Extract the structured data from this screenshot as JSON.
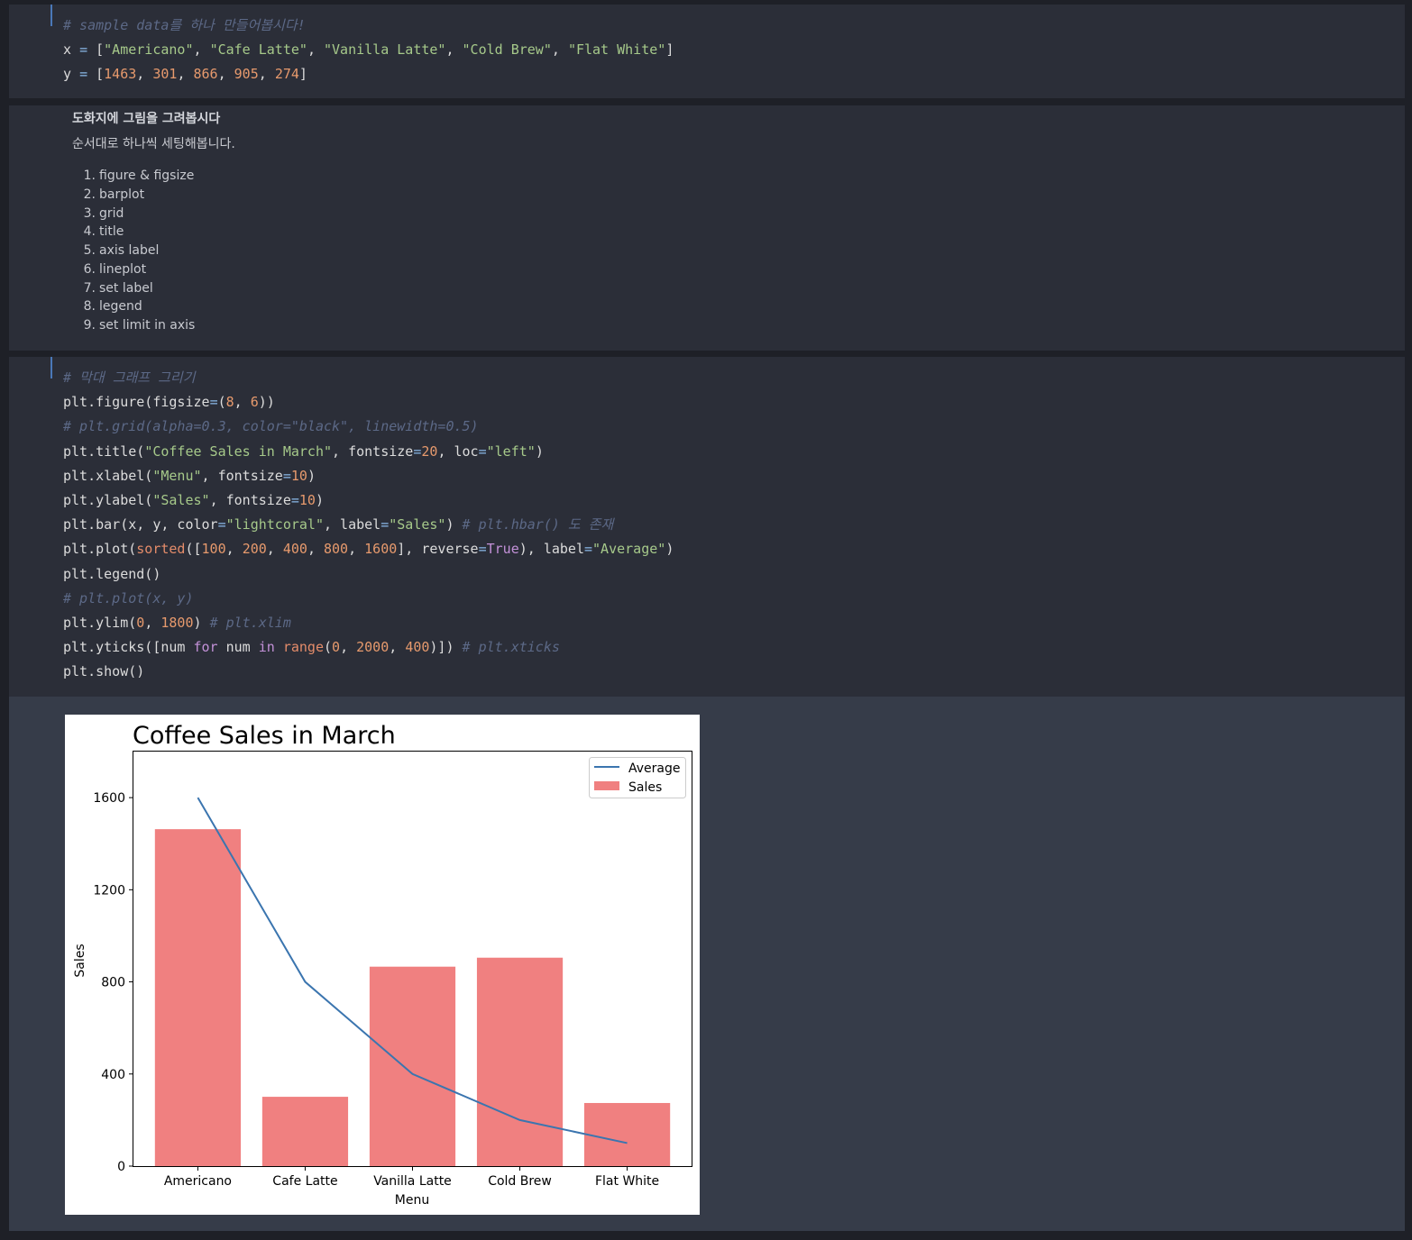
{
  "cell1": {
    "lines": [
      [
        {
          "c": "cm",
          "t": "# sample data를 하나 만들어봅시다!"
        }
      ],
      [
        {
          "c": "",
          "t": "x "
        },
        {
          "c": "op",
          "t": "="
        },
        {
          "c": "",
          "t": " ["
        },
        {
          "c": "st",
          "t": "\"Americano\""
        },
        {
          "c": "",
          "t": ", "
        },
        {
          "c": "st",
          "t": "\"Cafe Latte\""
        },
        {
          "c": "",
          "t": ", "
        },
        {
          "c": "st",
          "t": "\"Vanilla Latte\""
        },
        {
          "c": "",
          "t": ", "
        },
        {
          "c": "st",
          "t": "\"Cold Brew\""
        },
        {
          "c": "",
          "t": ", "
        },
        {
          "c": "st",
          "t": "\"Flat White\""
        },
        {
          "c": "",
          "t": "]"
        }
      ],
      [
        {
          "c": "",
          "t": "y "
        },
        {
          "c": "op",
          "t": "="
        },
        {
          "c": "",
          "t": " ["
        },
        {
          "c": "nu",
          "t": "1463"
        },
        {
          "c": "",
          "t": ", "
        },
        {
          "c": "nu",
          "t": "301"
        },
        {
          "c": "",
          "t": ", "
        },
        {
          "c": "nu",
          "t": "866"
        },
        {
          "c": "",
          "t": ", "
        },
        {
          "c": "nu",
          "t": "905"
        },
        {
          "c": "",
          "t": ", "
        },
        {
          "c": "nu",
          "t": "274"
        },
        {
          "c": "",
          "t": "]"
        }
      ]
    ]
  },
  "markdown": {
    "title": "도화지에 그림을 그려봅시다",
    "subtitle": "순서대로 하나씩 세팅해봅니다.",
    "items": [
      {
        "num": "1.",
        "label": "figure & figsize"
      },
      {
        "num": "2.",
        "label": "barplot"
      },
      {
        "num": "3.",
        "label": "grid"
      },
      {
        "num": "4.",
        "label": "title"
      },
      {
        "num": "5.",
        "label": "axis label"
      },
      {
        "num": "6.",
        "label": "lineplot"
      },
      {
        "num": "7.",
        "label": "set label"
      },
      {
        "num": "8.",
        "label": "legend"
      },
      {
        "num": "9.",
        "label": "set limit in axis"
      }
    ]
  },
  "cell2": {
    "lines": [
      [
        {
          "c": "cm",
          "t": "# 막대 그래프 그리기"
        }
      ],
      [
        {
          "c": "",
          "t": "plt.figure(figsize"
        },
        {
          "c": "op",
          "t": "="
        },
        {
          "c": "",
          "t": "("
        },
        {
          "c": "nu",
          "t": "8"
        },
        {
          "c": "",
          "t": ", "
        },
        {
          "c": "nu",
          "t": "6"
        },
        {
          "c": "",
          "t": "))"
        }
      ],
      [
        {
          "c": "cm",
          "t": "# plt.grid(alpha=0.3, color=\"black\", linewidth=0.5)"
        }
      ],
      [
        {
          "c": "",
          "t": "plt.title("
        },
        {
          "c": "st",
          "t": "\"Coffee Sales in March\""
        },
        {
          "c": "",
          "t": ", fontsize"
        },
        {
          "c": "op",
          "t": "="
        },
        {
          "c": "nu",
          "t": "20"
        },
        {
          "c": "",
          "t": ", loc"
        },
        {
          "c": "op",
          "t": "="
        },
        {
          "c": "st",
          "t": "\"left\""
        },
        {
          "c": "",
          "t": ")"
        }
      ],
      [
        {
          "c": "",
          "t": "plt.xlabel("
        },
        {
          "c": "st",
          "t": "\"Menu\""
        },
        {
          "c": "",
          "t": ", fontsize"
        },
        {
          "c": "op",
          "t": "="
        },
        {
          "c": "nu",
          "t": "10"
        },
        {
          "c": "",
          "t": ")"
        }
      ],
      [
        {
          "c": "",
          "t": "plt.ylabel("
        },
        {
          "c": "st",
          "t": "\"Sales\""
        },
        {
          "c": "",
          "t": ", fontsize"
        },
        {
          "c": "op",
          "t": "="
        },
        {
          "c": "nu",
          "t": "10"
        },
        {
          "c": "",
          "t": ")"
        }
      ],
      [
        {
          "c": "",
          "t": "plt.bar(x, y, color"
        },
        {
          "c": "op",
          "t": "="
        },
        {
          "c": "st",
          "t": "\"lightcoral\""
        },
        {
          "c": "",
          "t": ", label"
        },
        {
          "c": "op",
          "t": "="
        },
        {
          "c": "st",
          "t": "\"Sales\""
        },
        {
          "c": "",
          "t": ") "
        },
        {
          "c": "cm",
          "t": "# plt.hbar() 도 존재"
        }
      ],
      [
        {
          "c": "",
          "t": "plt.plot("
        },
        {
          "c": "bi",
          "t": "sorted"
        },
        {
          "c": "",
          "t": "(["
        },
        {
          "c": "nu",
          "t": "100"
        },
        {
          "c": "",
          "t": ", "
        },
        {
          "c": "nu",
          "t": "200"
        },
        {
          "c": "",
          "t": ", "
        },
        {
          "c": "nu",
          "t": "400"
        },
        {
          "c": "",
          "t": ", "
        },
        {
          "c": "nu",
          "t": "800"
        },
        {
          "c": "",
          "t": ", "
        },
        {
          "c": "nu",
          "t": "1600"
        },
        {
          "c": "",
          "t": "], reverse"
        },
        {
          "c": "op",
          "t": "="
        },
        {
          "c": "kw",
          "t": "True"
        },
        {
          "c": "",
          "t": "), label"
        },
        {
          "c": "op",
          "t": "="
        },
        {
          "c": "st",
          "t": "\"Average\""
        },
        {
          "c": "",
          "t": ")"
        }
      ],
      [
        {
          "c": "",
          "t": "plt.legend()"
        }
      ],
      [
        {
          "c": "cm",
          "t": "# plt.plot(x, y)"
        }
      ],
      [
        {
          "c": "",
          "t": "plt.ylim("
        },
        {
          "c": "nu",
          "t": "0"
        },
        {
          "c": "",
          "t": ", "
        },
        {
          "c": "nu",
          "t": "1800"
        },
        {
          "c": "",
          "t": ") "
        },
        {
          "c": "cm",
          "t": "# plt.xlim"
        }
      ],
      [
        {
          "c": "",
          "t": "plt.yticks([num "
        },
        {
          "c": "kw",
          "t": "for"
        },
        {
          "c": "",
          "t": " num "
        },
        {
          "c": "kw",
          "t": "in"
        },
        {
          "c": "",
          "t": " "
        },
        {
          "c": "bi",
          "t": "range"
        },
        {
          "c": "",
          "t": "("
        },
        {
          "c": "nu",
          "t": "0"
        },
        {
          "c": "",
          "t": ", "
        },
        {
          "c": "nu",
          "t": "2000"
        },
        {
          "c": "",
          "t": ", "
        },
        {
          "c": "nu",
          "t": "400"
        },
        {
          "c": "",
          "t": ")]) "
        },
        {
          "c": "cm",
          "t": "# plt.xticks"
        }
      ],
      [
        {
          "c": "",
          "t": "plt.show()"
        }
      ]
    ]
  },
  "chart_data": {
    "type": "bar",
    "title": "Coffee Sales in March",
    "xlabel": "Menu",
    "ylabel": "Sales",
    "categories": [
      "Americano",
      "Cafe Latte",
      "Vanilla Latte",
      "Cold Brew",
      "Flat White"
    ],
    "series": [
      {
        "name": "Sales",
        "type": "bar",
        "values": [
          1463,
          301,
          866,
          905,
          274
        ],
        "color": "#f08080"
      },
      {
        "name": "Average",
        "type": "line",
        "values": [
          1600,
          800,
          400,
          200,
          100
        ],
        "color": "#3b75af"
      }
    ],
    "ylim": [
      0,
      1800
    ],
    "yticks": [
      "0",
      "400",
      "800",
      "1200",
      "1600"
    ],
    "ytick_values": [
      0,
      400,
      800,
      1200,
      1600
    ],
    "grid": false,
    "legend": "top-right"
  }
}
